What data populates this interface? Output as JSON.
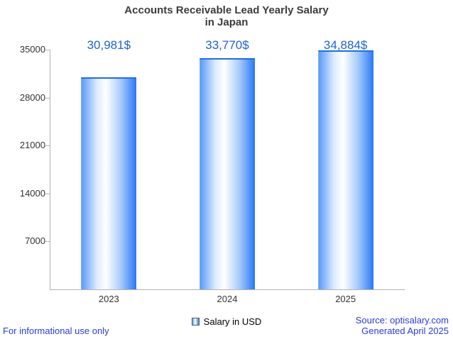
{
  "title": {
    "line1": "Accounts Receivable Lead Yearly Salary",
    "line2": "in Japan"
  },
  "chart_data": {
    "type": "bar",
    "title": "Accounts Receivable Lead Yearly Salary in Japan",
    "categories": [
      "2023",
      "2024",
      "2025"
    ],
    "values": [
      30981,
      33770,
      34884
    ],
    "value_labels": [
      "30,981$",
      "33,770$",
      "34,884$"
    ],
    "xlabel": "",
    "ylabel": "",
    "ylim": [
      0,
      35000
    ],
    "yticks": [
      7000,
      14000,
      21000,
      28000,
      35000
    ],
    "grid": false,
    "legend_entries": [
      "Salary in USD"
    ],
    "legend_position": "bottom"
  },
  "legend": {
    "label": "Salary in USD"
  },
  "footer": {
    "left": "For informational use only",
    "source": "Source: optisalary.com",
    "generated": "Generated April 2025"
  },
  "colors": {
    "accent_blue": "#2062cf",
    "footer_blue": "#2b3cd7",
    "title_gray": "#3c3c3c",
    "axis_gray": "#b3b3b3",
    "text_dark": "#333333",
    "bar_top": "#1f6fe0",
    "bar_left": "#5b9bf8",
    "bar_center": "#ffffff",
    "bar_right": "#2f7df6"
  }
}
